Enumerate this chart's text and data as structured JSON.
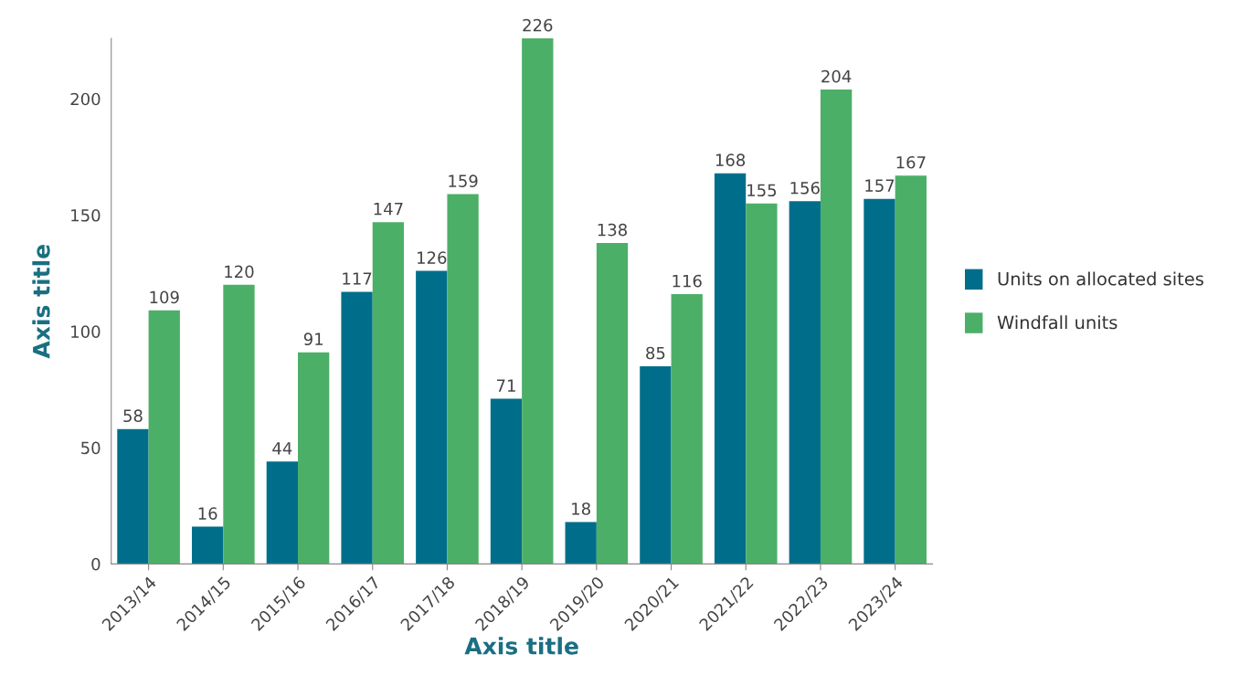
{
  "chart_data": {
    "type": "bar",
    "xlabel": "Axis title",
    "ylabel": "Axis title",
    "categories": [
      "2013/14",
      "2014/15",
      "2015/16",
      "2016/17",
      "2017/18",
      "2018/19",
      "2019/20",
      "2020/21",
      "2021/22",
      "2022/23",
      "2023/24"
    ],
    "series": [
      {
        "name": "Units on allocated sites",
        "color": "#006e8a",
        "values": [
          58,
          16,
          44,
          117,
          126,
          71,
          18,
          85,
          168,
          156,
          157
        ]
      },
      {
        "name": "Windfall units",
        "color": "#4caf67",
        "values": [
          109,
          120,
          91,
          147,
          159,
          226,
          138,
          116,
          155,
          204,
          167
        ]
      }
    ],
    "ylim": [
      0,
      226
    ],
    "yticks": [
      0,
      50,
      100,
      150,
      200
    ],
    "data_labels": true,
    "grid": false,
    "legend": "right"
  }
}
